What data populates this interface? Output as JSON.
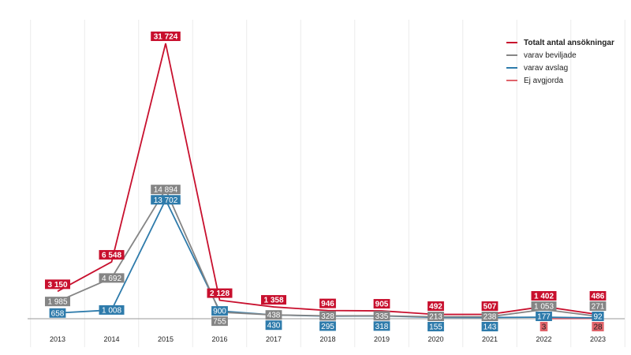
{
  "chart_data": {
    "type": "line",
    "title": "",
    "xlabel": "",
    "ylabel": "",
    "categories": [
      "2013",
      "2014",
      "2015",
      "2016",
      "2017",
      "2018",
      "2019",
      "2020",
      "2021",
      "2022",
      "2023"
    ],
    "ylim": [
      0,
      31724
    ],
    "grid": "vertical",
    "legend_position": "top-right",
    "series": [
      {
        "name": "Totalt antal ansökningar",
        "color": "#c8102e",
        "values": [
          3150,
          6548,
          31724,
          2128,
          1358,
          946,
          905,
          492,
          507,
          1402,
          486
        ],
        "labels": [
          "3 150",
          "6 548",
          "31 724",
          "2 128",
          "1 358",
          "946",
          "905",
          "492",
          "507",
          "1 402",
          "486"
        ]
      },
      {
        "name": "varav beviljade",
        "color": "#858585",
        "values": [
          1985,
          4692,
          14894,
          755,
          438,
          328,
          335,
          213,
          238,
          1053,
          271
        ],
        "labels": [
          "1 985",
          "4 692",
          "14 894",
          "755",
          "438",
          "328",
          "335",
          "213",
          "238",
          "1 053",
          "271"
        ]
      },
      {
        "name": "varav avslag",
        "color": "#2e7bab",
        "values": [
          658,
          1008,
          13702,
          900,
          430,
          295,
          318,
          155,
          143,
          177,
          92
        ],
        "labels": [
          "658",
          "1 008",
          "13 702",
          "900",
          "430",
          "295",
          "318",
          "155",
          "143",
          "177",
          "92"
        ]
      },
      {
        "name": "Ej avgjorda",
        "color": "#e0646b",
        "values": [
          null,
          null,
          null,
          null,
          null,
          null,
          null,
          null,
          null,
          3,
          28
        ],
        "labels": [
          "",
          "",
          "",
          "",
          "",
          "",
          "",
          "",
          "",
          "3",
          "28"
        ]
      }
    ]
  }
}
